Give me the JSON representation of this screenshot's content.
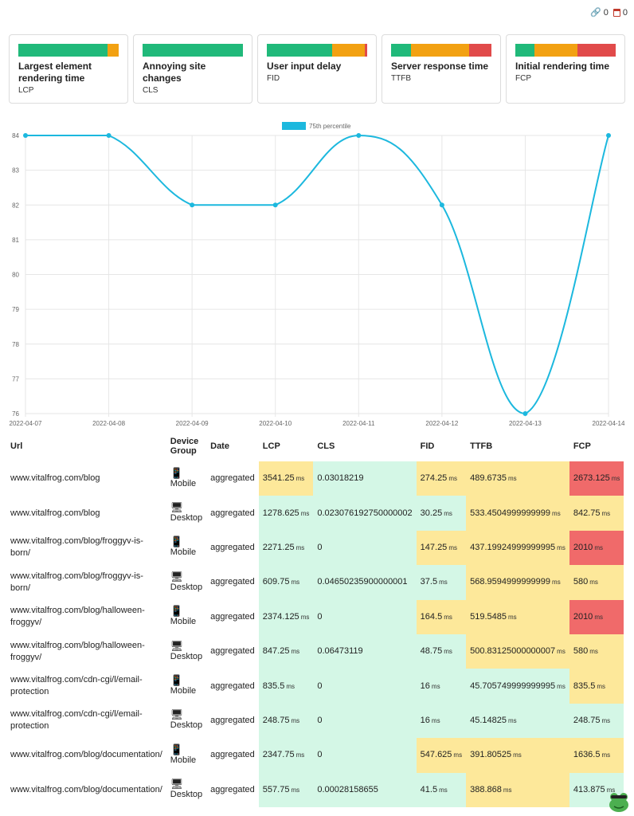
{
  "counters": {
    "links": "0",
    "calendar": "0"
  },
  "metrics": [
    {
      "title": "Largest element rendering time",
      "abbr": "LCP",
      "segments": [
        {
          "color": "#20b97a",
          "pct": 89
        },
        {
          "color": "#f2a112",
          "pct": 11
        }
      ]
    },
    {
      "title": "Annoying site changes",
      "abbr": "CLS",
      "segments": [
        {
          "color": "#20b97a",
          "pct": 100
        }
      ]
    },
    {
      "title": "User input delay",
      "abbr": "FID",
      "segments": [
        {
          "color": "#20b97a",
          "pct": 65
        },
        {
          "color": "#f2a112",
          "pct": 33
        },
        {
          "color": "#e14a4a",
          "pct": 2
        }
      ]
    },
    {
      "title": "Server response time",
      "abbr": "TTFB",
      "segments": [
        {
          "color": "#20b97a",
          "pct": 20
        },
        {
          "color": "#f2a112",
          "pct": 58
        },
        {
          "color": "#e14a4a",
          "pct": 22
        }
      ]
    },
    {
      "title": "Initial rendering time",
      "abbr": "FCP",
      "segments": [
        {
          "color": "#20b97a",
          "pct": 19
        },
        {
          "color": "#f2a112",
          "pct": 43
        },
        {
          "color": "#e14a4a",
          "pct": 38
        }
      ]
    }
  ],
  "chart_data": {
    "type": "line",
    "legend": "75th percentile",
    "legend_position": "top",
    "x": [
      "2022-04-07",
      "2022-04-08",
      "2022-04-09",
      "2022-04-10",
      "2022-04-11",
      "2022-04-12",
      "2022-04-13",
      "2022-04-14"
    ],
    "series": [
      {
        "name": "75th percentile",
        "values": [
          84,
          84,
          82,
          82,
          84,
          82,
          76,
          84
        ],
        "color": "#1cb8de"
      }
    ],
    "ylim": [
      76,
      84
    ],
    "yticks": [
      76,
      77,
      78,
      79,
      80,
      81,
      82,
      83,
      84
    ],
    "grid": true
  },
  "table": {
    "headers": {
      "url": "Url",
      "device": "Device Group",
      "date": "Date",
      "lcp": "LCP",
      "cls": "CLS",
      "fid": "FID",
      "ttfb": "TTFB",
      "fcp": "FCP"
    },
    "rows": [
      {
        "url": "www.vitalfrog.com/blog",
        "device": "Mobile",
        "date": "aggregated",
        "lcp": {
          "v": "3541.25",
          "u": "ms",
          "s": "avg"
        },
        "cls": {
          "v": "0.03018219",
          "u": "",
          "s": "good"
        },
        "fid": {
          "v": "274.25",
          "u": "ms",
          "s": "avg"
        },
        "ttfb": {
          "v": "489.6735",
          "u": "ms",
          "s": "avg"
        },
        "fcp": {
          "v": "2673.125",
          "u": "ms",
          "s": "bad"
        }
      },
      {
        "url": "www.vitalfrog.com/blog",
        "device": "Desktop",
        "date": "aggregated",
        "lcp": {
          "v": "1278.625",
          "u": "ms",
          "s": "good"
        },
        "cls": {
          "v": "0.023076192750000002",
          "u": "",
          "s": "good"
        },
        "fid": {
          "v": "30.25",
          "u": "ms",
          "s": "good"
        },
        "ttfb": {
          "v": "533.4504999999999",
          "u": "ms",
          "s": "avg"
        },
        "fcp": {
          "v": "842.75",
          "u": "ms",
          "s": "avg"
        }
      },
      {
        "url": "www.vitalfrog.com/blog/froggyv-is-born/",
        "device": "Mobile",
        "date": "aggregated",
        "lcp": {
          "v": "2271.25",
          "u": "ms",
          "s": "good"
        },
        "cls": {
          "v": "0",
          "u": "",
          "s": "good"
        },
        "fid": {
          "v": "147.25",
          "u": "ms",
          "s": "avg"
        },
        "ttfb": {
          "v": "437.19924999999995",
          "u": "ms",
          "s": "avg"
        },
        "fcp": {
          "v": "2010",
          "u": "ms",
          "s": "bad"
        }
      },
      {
        "url": "www.vitalfrog.com/blog/froggyv-is-born/",
        "device": "Desktop",
        "date": "aggregated",
        "lcp": {
          "v": "609.75",
          "u": "ms",
          "s": "good"
        },
        "cls": {
          "v": "0.04650235900000001",
          "u": "",
          "s": "good"
        },
        "fid": {
          "v": "37.5",
          "u": "ms",
          "s": "good"
        },
        "ttfb": {
          "v": "568.9594999999999",
          "u": "ms",
          "s": "avg"
        },
        "fcp": {
          "v": "580",
          "u": "ms",
          "s": "avg"
        }
      },
      {
        "url": "www.vitalfrog.com/blog/halloween-froggyv/",
        "device": "Mobile",
        "date": "aggregated",
        "lcp": {
          "v": "2374.125",
          "u": "ms",
          "s": "good"
        },
        "cls": {
          "v": "0",
          "u": "",
          "s": "good"
        },
        "fid": {
          "v": "164.5",
          "u": "ms",
          "s": "avg"
        },
        "ttfb": {
          "v": "519.5485",
          "u": "ms",
          "s": "avg"
        },
        "fcp": {
          "v": "2010",
          "u": "ms",
          "s": "bad"
        }
      },
      {
        "url": "www.vitalfrog.com/blog/halloween-froggyv/",
        "device": "Desktop",
        "date": "aggregated",
        "lcp": {
          "v": "847.25",
          "u": "ms",
          "s": "good"
        },
        "cls": {
          "v": "0.06473119",
          "u": "",
          "s": "good"
        },
        "fid": {
          "v": "48.75",
          "u": "ms",
          "s": "good"
        },
        "ttfb": {
          "v": "500.83125000000007",
          "u": "ms",
          "s": "avg"
        },
        "fcp": {
          "v": "580",
          "u": "ms",
          "s": "avg"
        }
      },
      {
        "url": "www.vitalfrog.com/cdn-cgi/l/email-protection",
        "device": "Mobile",
        "date": "aggregated",
        "lcp": {
          "v": "835.5",
          "u": "ms",
          "s": "good"
        },
        "cls": {
          "v": "0",
          "u": "",
          "s": "good"
        },
        "fid": {
          "v": "16",
          "u": "ms",
          "s": "good"
        },
        "ttfb": {
          "v": "45.705749999999995",
          "u": "ms",
          "s": "good"
        },
        "fcp": {
          "v": "835.5",
          "u": "ms",
          "s": "avg"
        }
      },
      {
        "url": "www.vitalfrog.com/cdn-cgi/l/email-protection",
        "device": "Desktop",
        "date": "aggregated",
        "lcp": {
          "v": "248.75",
          "u": "ms",
          "s": "good"
        },
        "cls": {
          "v": "0",
          "u": "",
          "s": "good"
        },
        "fid": {
          "v": "16",
          "u": "ms",
          "s": "good"
        },
        "ttfb": {
          "v": "45.14825",
          "u": "ms",
          "s": "good"
        },
        "fcp": {
          "v": "248.75",
          "u": "ms",
          "s": "good"
        }
      },
      {
        "url": "www.vitalfrog.com/blog/documentation/",
        "device": "Mobile",
        "date": "aggregated",
        "lcp": {
          "v": "2347.75",
          "u": "ms",
          "s": "good"
        },
        "cls": {
          "v": "0",
          "u": "",
          "s": "good"
        },
        "fid": {
          "v": "547.625",
          "u": "ms",
          "s": "avg"
        },
        "ttfb": {
          "v": "391.80525",
          "u": "ms",
          "s": "avg"
        },
        "fcp": {
          "v": "1636.5",
          "u": "ms",
          "s": "avg"
        }
      },
      {
        "url": "www.vitalfrog.com/blog/documentation/",
        "device": "Desktop",
        "date": "aggregated",
        "lcp": {
          "v": "557.75",
          "u": "ms",
          "s": "good"
        },
        "cls": {
          "v": "0.00028158655",
          "u": "",
          "s": "good"
        },
        "fid": {
          "v": "41.5",
          "u": "ms",
          "s": "good"
        },
        "ttfb": {
          "v": "388.868",
          "u": "ms",
          "s": "avg"
        },
        "fcp": {
          "v": "413.875",
          "u": "ms",
          "s": "good"
        }
      }
    ]
  }
}
